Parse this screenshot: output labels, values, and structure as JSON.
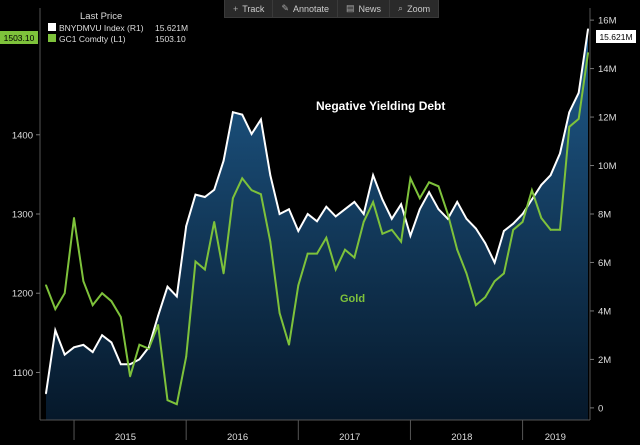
{
  "toolbar": {
    "items": [
      {
        "label": "Track",
        "icon": "crosshair-icon",
        "glyph": "+"
      },
      {
        "label": "Annotate",
        "icon": "pencil-icon",
        "glyph": "✎"
      },
      {
        "label": "News",
        "icon": "news-icon",
        "glyph": "▤"
      },
      {
        "label": "Zoom",
        "icon": "magnifier-icon",
        "glyph": "⌕"
      }
    ]
  },
  "legend": {
    "title": "Last Price",
    "entries": [
      {
        "name": "BNYDMVU Index  (R1)",
        "value": "15.621M",
        "color": "#ffffff"
      },
      {
        "name": "GC1 Comdty  (L1)",
        "value": "1503.10",
        "color": "#7ec23b"
      }
    ]
  },
  "annotations": {
    "debt_label": "Negative Yielding Debt",
    "gold_label": "Gold"
  },
  "last_value_tags": {
    "left": "1503.10",
    "right": "15.621M"
  },
  "colors": {
    "background": "#000000",
    "gold": "#7ec23b",
    "debt": "#ffffff",
    "area_top": "#1f5b8c",
    "area_bottom": "#071a2c",
    "axis_text": "#dddddd"
  },
  "chart_data": {
    "type": "line",
    "x_axis": {
      "labels": [
        "2015",
        "2016",
        "2017",
        "2018",
        "2019"
      ],
      "range": [
        "2014-10",
        "2019-08"
      ]
    },
    "y_left": {
      "ticks": [
        "1100",
        "1200",
        "1300",
        "1400"
      ],
      "range": [
        1040,
        1560
      ]
    },
    "y_right": {
      "ticks": [
        "0",
        "2M",
        "4M",
        "6M",
        "8M",
        "10M",
        "12M",
        "14M",
        "16M"
      ],
      "range": [
        -0.5,
        16.5
      ],
      "unit": "M"
    },
    "series": [
      {
        "name": "BNYDMVU Index (R1)",
        "axis": "right",
        "style": "line+area",
        "points": [
          [
            "2014-10",
            0.6
          ],
          [
            "2014-11",
            3.2
          ],
          [
            "2014-12",
            2.2
          ],
          [
            "2015-01",
            2.5
          ],
          [
            "2015-02",
            2.6
          ],
          [
            "2015-03",
            2.3
          ],
          [
            "2015-04",
            3.0
          ],
          [
            "2015-05",
            2.7
          ],
          [
            "2015-06",
            1.8
          ],
          [
            "2015-07",
            1.8
          ],
          [
            "2015-08",
            2.0
          ],
          [
            "2015-09",
            2.5
          ],
          [
            "2015-10",
            3.8
          ],
          [
            "2015-11",
            5.0
          ],
          [
            "2015-12",
            4.6
          ],
          [
            "2016-01",
            7.5
          ],
          [
            "2016-02",
            8.8
          ],
          [
            "2016-03",
            8.7
          ],
          [
            "2016-04",
            9.0
          ],
          [
            "2016-05",
            10.2
          ],
          [
            "2016-06",
            12.2
          ],
          [
            "2016-07",
            12.1
          ],
          [
            "2016-08",
            11.3
          ],
          [
            "2016-09",
            11.9
          ],
          [
            "2016-10",
            9.6
          ],
          [
            "2016-11",
            8.0
          ],
          [
            "2016-12",
            8.2
          ],
          [
            "2017-01",
            7.3
          ],
          [
            "2017-02",
            8.0
          ],
          [
            "2017-03",
            7.7
          ],
          [
            "2017-04",
            8.3
          ],
          [
            "2017-05",
            7.9
          ],
          [
            "2017-06",
            8.2
          ],
          [
            "2017-07",
            8.5
          ],
          [
            "2017-08",
            8.0
          ],
          [
            "2017-09",
            9.6
          ],
          [
            "2017-10",
            8.6
          ],
          [
            "2017-11",
            7.8
          ],
          [
            "2017-12",
            8.4
          ],
          [
            "2018-01",
            7.1
          ],
          [
            "2018-02",
            8.2
          ],
          [
            "2018-03",
            8.9
          ],
          [
            "2018-04",
            8.2
          ],
          [
            "2018-05",
            7.8
          ],
          [
            "2018-06",
            8.5
          ],
          [
            "2018-07",
            7.8
          ],
          [
            "2018-08",
            7.4
          ],
          [
            "2018-09",
            6.8
          ],
          [
            "2018-10",
            6.0
          ],
          [
            "2018-11",
            7.3
          ],
          [
            "2018-12",
            7.6
          ],
          [
            "2019-01",
            8.0
          ],
          [
            "2019-02",
            8.6
          ],
          [
            "2019-03",
            9.2
          ],
          [
            "2019-04",
            9.6
          ],
          [
            "2019-05",
            10.5
          ],
          [
            "2019-06",
            12.2
          ],
          [
            "2019-07",
            13.0
          ],
          [
            "2019-08",
            15.621
          ]
        ]
      },
      {
        "name": "GC1 Comdty (L1)",
        "axis": "left",
        "style": "line",
        "points": [
          [
            "2014-10",
            1210
          ],
          [
            "2014-11",
            1180
          ],
          [
            "2014-12",
            1200
          ],
          [
            "2015-01",
            1295
          ],
          [
            "2015-02",
            1215
          ],
          [
            "2015-03",
            1185
          ],
          [
            "2015-04",
            1200
          ],
          [
            "2015-05",
            1190
          ],
          [
            "2015-06",
            1170
          ],
          [
            "2015-07",
            1095
          ],
          [
            "2015-08",
            1135
          ],
          [
            "2015-09",
            1130
          ],
          [
            "2015-10",
            1160
          ],
          [
            "2015-11",
            1065
          ],
          [
            "2015-12",
            1060
          ],
          [
            "2016-01",
            1120
          ],
          [
            "2016-02",
            1240
          ],
          [
            "2016-03",
            1230
          ],
          [
            "2016-04",
            1290
          ],
          [
            "2016-05",
            1225
          ],
          [
            "2016-06",
            1320
          ],
          [
            "2016-07",
            1345
          ],
          [
            "2016-08",
            1330
          ],
          [
            "2016-09",
            1325
          ],
          [
            "2016-10",
            1265
          ],
          [
            "2016-11",
            1175
          ],
          [
            "2016-12",
            1135
          ],
          [
            "2017-01",
            1210
          ],
          [
            "2017-02",
            1250
          ],
          [
            "2017-03",
            1250
          ],
          [
            "2017-04",
            1270
          ],
          [
            "2017-05",
            1230
          ],
          [
            "2017-06",
            1255
          ],
          [
            "2017-07",
            1245
          ],
          [
            "2017-08",
            1290
          ],
          [
            "2017-09",
            1315
          ],
          [
            "2017-10",
            1275
          ],
          [
            "2017-11",
            1280
          ],
          [
            "2017-12",
            1265
          ],
          [
            "2018-01",
            1345
          ],
          [
            "2018-02",
            1320
          ],
          [
            "2018-03",
            1340
          ],
          [
            "2018-04",
            1335
          ],
          [
            "2018-05",
            1300
          ],
          [
            "2018-06",
            1255
          ],
          [
            "2018-07",
            1225
          ],
          [
            "2018-08",
            1185
          ],
          [
            "2018-09",
            1195
          ],
          [
            "2018-10",
            1215
          ],
          [
            "2018-11",
            1225
          ],
          [
            "2018-12",
            1280
          ],
          [
            "2019-01",
            1290
          ],
          [
            "2019-02",
            1330
          ],
          [
            "2019-03",
            1295
          ],
          [
            "2019-04",
            1280
          ],
          [
            "2019-05",
            1280
          ],
          [
            "2019-06",
            1410
          ],
          [
            "2019-07",
            1420
          ],
          [
            "2019-08",
            1503.1
          ]
        ]
      }
    ]
  }
}
